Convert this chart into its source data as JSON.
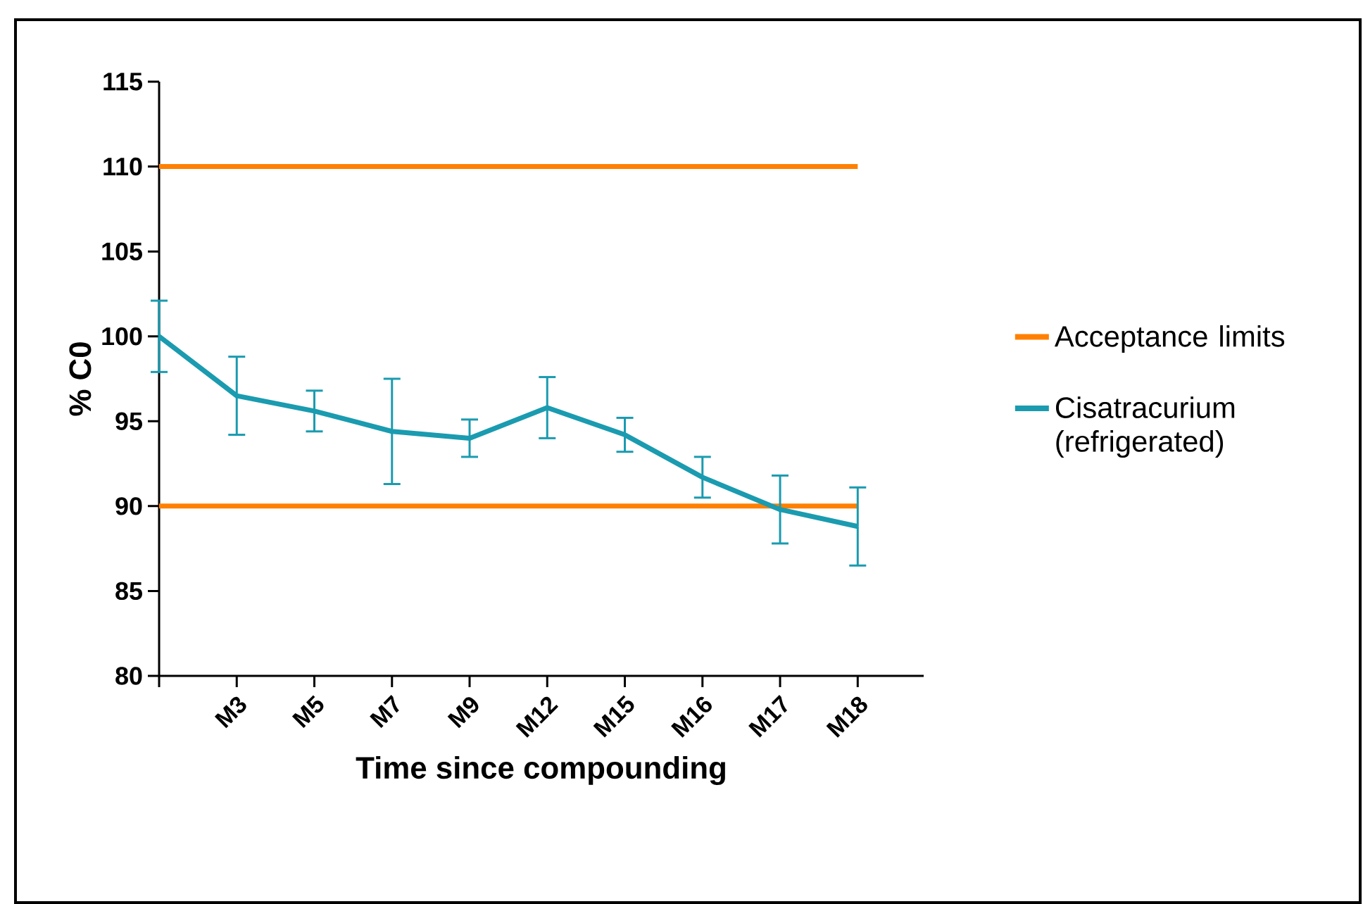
{
  "chart_data": {
    "type": "line",
    "xlabel": "Time since compounding",
    "ylabel": "% C0",
    "categories": [
      null,
      "M3",
      "M5",
      "M7",
      "M9",
      "M12",
      "M15",
      "M16",
      "M17",
      "M18"
    ],
    "ylim": [
      80,
      115
    ],
    "yticks": [
      80,
      85,
      90,
      95,
      100,
      105,
      110,
      115
    ],
    "grid": false,
    "legend": "right",
    "marker": "none",
    "line_style": "solid",
    "series": [
      {
        "name": "Acceptance limits",
        "color": "#ff8000",
        "values": [
          110,
          110,
          110,
          110,
          110,
          110,
          110,
          110,
          110,
          110
        ]
      },
      {
        "color": "#ff8000",
        "values": [
          90,
          90,
          90,
          90,
          90,
          90,
          90,
          90,
          90,
          90
        ]
      },
      {
        "name": "Cisatracurium (refrigerated)",
        "color": "#1a9bb0",
        "values": [
          100,
          96.5,
          95.6,
          94.4,
          94.0,
          95.8,
          94.2,
          91.7,
          89.8,
          88.8
        ],
        "errors": [
          2.1,
          2.3,
          1.2,
          3.1,
          1.1,
          1.8,
          1.0,
          1.2,
          2.0,
          2.3
        ]
      }
    ]
  }
}
